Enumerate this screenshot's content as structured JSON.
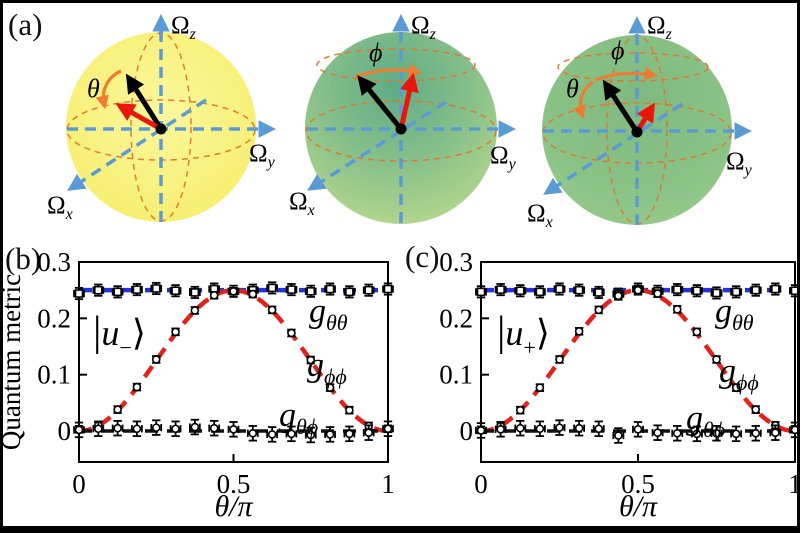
{
  "frame": {
    "background": "#ffffff",
    "border_color": "#000000"
  },
  "panel_a": {
    "label": "(a)",
    "omega": "Ω",
    "sub_x": "x",
    "sub_y": "y",
    "sub_z": "z",
    "theta": "θ",
    "phi": "ϕ",
    "axis_color": "#5b9bd5",
    "orbit_color": "#e0762f",
    "arrow_black": "#000000",
    "arrow_red": "#e8160c",
    "angle_arrow_color": "#ed7d31",
    "sphere_colors": {
      "left": "#f8f172",
      "middle_center": "#63ad85",
      "middle_edge": "#cfe193",
      "right": "#8cc487"
    }
  },
  "panel_b": {
    "label": "(b)"
  },
  "panel_c": {
    "label": "(c)"
  },
  "chart_data": [
    {
      "type": "scatter",
      "panel": "(b)",
      "state_label": {
        "bar": "|",
        "letter": "u",
        "sub": "−",
        "ket": "⟩"
      },
      "xlabel": "θ/π",
      "ylabel": "Quantum metric",
      "xlim": [
        0,
        1
      ],
      "ylim": [
        -0.055,
        0.3
      ],
      "grid": false,
      "legend_position": "inline-right",
      "xticks": [
        "0",
        "0.5",
        "1"
      ],
      "xtick_values": [
        0,
        0.5,
        1
      ],
      "yticks": [
        "0",
        "0.1",
        "0.2",
        "0.3"
      ],
      "ytick_values": [
        0,
        0.1,
        0.2,
        0.3
      ],
      "x": [
        0,
        0.0625,
        0.125,
        0.1875,
        0.25,
        0.3125,
        0.375,
        0.4375,
        0.5,
        0.5625,
        0.625,
        0.6875,
        0.75,
        0.8125,
        0.875,
        0.9375,
        1
      ],
      "series": [
        {
          "label_base": "g",
          "label_sub": "θθ",
          "color": "#2233dd",
          "theory": "constant",
          "theory_value": 0.25,
          "marker": "square",
          "yerr": 0.01,
          "xerr": 0.016,
          "values": [
            0.244,
            0.25,
            0.247,
            0.251,
            0.253,
            0.249,
            0.246,
            0.252,
            0.248,
            0.25,
            0.254,
            0.251,
            0.248,
            0.252,
            0.247,
            0.25,
            0.252
          ]
        },
        {
          "label_base": "g",
          "label_sub": "ϕϕ",
          "color": "#e2231a",
          "theory": "sin2",
          "theory_value": 0.25,
          "marker": "circle",
          "yerr": 0.006,
          "xerr": 0.008,
          "values": [
            0.003,
            0.01,
            0.038,
            0.078,
            0.127,
            0.176,
            0.214,
            0.241,
            0.248,
            0.243,
            0.215,
            0.174,
            0.126,
            0.077,
            0.037,
            0.009,
            0.004
          ]
        },
        {
          "label_base": "g",
          "label_sub": "θϕ",
          "color": "#111111",
          "theory": "constant",
          "theory_value": 0.0,
          "marker": "circle",
          "yerr": 0.013,
          "xerr": 0.016,
          "values": [
            0.002,
            0.004,
            0.005,
            0.004,
            0.006,
            0.004,
            0.007,
            0.005,
            0.003,
            -0.004,
            -0.006,
            -0.005,
            -0.007,
            -0.006,
            -0.005,
            -0.003,
            0.004
          ]
        }
      ]
    },
    {
      "type": "scatter",
      "panel": "(c)",
      "state_label": {
        "bar": "|",
        "letter": "u",
        "sub": "+",
        "ket": "⟩"
      },
      "xlabel": "θ/π",
      "ylabel": "",
      "xlim": [
        0,
        1
      ],
      "ylim": [
        -0.055,
        0.3
      ],
      "grid": false,
      "legend_position": "inline-right",
      "xticks": [
        "0",
        "0.5",
        "1"
      ],
      "xtick_values": [
        0,
        0.5,
        1
      ],
      "yticks": [
        "0",
        "0.1",
        "0.2",
        "0.3"
      ],
      "ytick_values": [
        0,
        0.1,
        0.2,
        0.3
      ],
      "x": [
        0,
        0.0625,
        0.125,
        0.1875,
        0.25,
        0.3125,
        0.375,
        0.4375,
        0.5,
        0.5625,
        0.625,
        0.6875,
        0.75,
        0.8125,
        0.875,
        0.9375,
        1
      ],
      "series": [
        {
          "label_base": "g",
          "label_sub": "θθ",
          "color": "#2233dd",
          "theory": "constant",
          "theory_value": 0.25,
          "marker": "square",
          "yerr": 0.01,
          "xerr": 0.016,
          "values": [
            0.247,
            0.251,
            0.249,
            0.247,
            0.252,
            0.25,
            0.246,
            0.243,
            0.252,
            0.248,
            0.251,
            0.249,
            0.245,
            0.247,
            0.25,
            0.252,
            0.249
          ]
        },
        {
          "label_base": "g",
          "label_sub": "ϕϕ",
          "color": "#e2231a",
          "theory": "sin2",
          "theory_value": 0.25,
          "marker": "circle",
          "yerr": 0.006,
          "xerr": 0.008,
          "values": [
            0.002,
            0.009,
            0.037,
            0.077,
            0.127,
            0.177,
            0.215,
            0.24,
            0.25,
            0.244,
            0.216,
            0.176,
            0.127,
            0.077,
            0.038,
            0.01,
            0.003
          ]
        },
        {
          "label_base": "g",
          "label_sub": "θϕ",
          "color": "#111111",
          "theory": "constant",
          "theory_value": 0.0,
          "marker": "circle",
          "yerr": 0.013,
          "xerr": 0.016,
          "values": [
            0.001,
            0.003,
            0.005,
            0.004,
            0.006,
            0.005,
            0.004,
            -0.008,
            0.003,
            -0.003,
            -0.004,
            -0.005,
            -0.004,
            -0.005,
            -0.004,
            -0.003,
            0.002
          ]
        }
      ]
    }
  ]
}
